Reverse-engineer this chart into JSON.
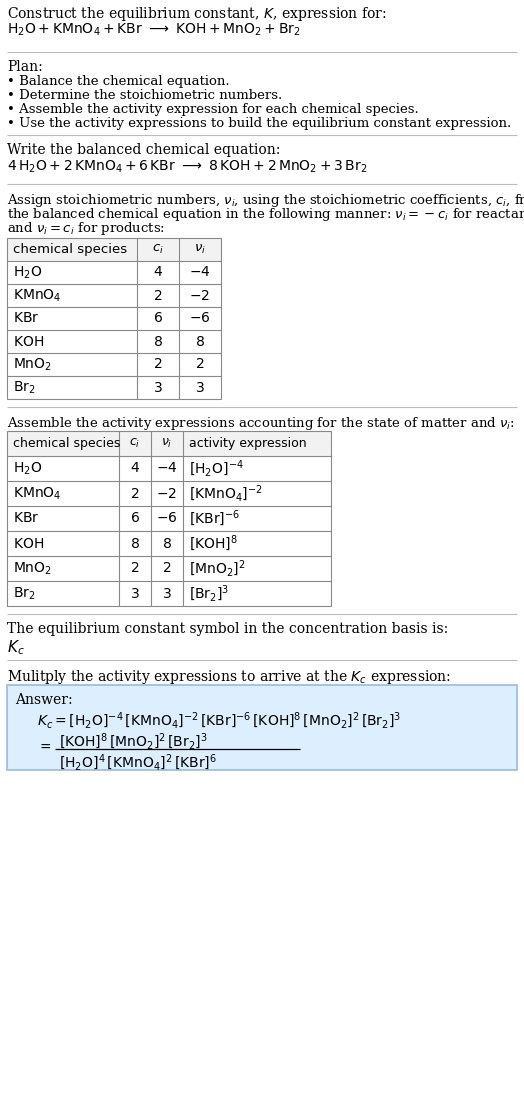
{
  "title_line1": "Construct the equilibrium constant, $K$, expression for:",
  "title_line2_plain": "H",
  "section_separator_color": "#aaaaaa",
  "plan_header": "Plan:",
  "plan_items": [
    "• Balance the chemical equation.",
    "• Determine the stoichiometric numbers.",
    "• Assemble the activity expression for each chemical species.",
    "• Use the activity expressions to build the equilibrium constant expression."
  ],
  "balanced_header": "Write the balanced chemical equation:",
  "stoich_intro": "Assign stoichiometric numbers, $\\nu_i$, using the stoichiometric coefficients, $c_i$, from the balanced chemical equation in the following manner: $\\nu_i = -c_i$ for reactants and $\\nu_i = c_i$ for products:",
  "table1_cols": [
    "chemical species",
    "$c_i$",
    "$\\nu_i$"
  ],
  "table1_rows": [
    [
      "$\\mathrm{H_2O}$",
      "4",
      "$-4$"
    ],
    [
      "$\\mathrm{KMnO_4}$",
      "2",
      "$-2$"
    ],
    [
      "$\\mathrm{KBr}$",
      "6",
      "$-6$"
    ],
    [
      "$\\mathrm{KOH}$",
      "8",
      "8"
    ],
    [
      "$\\mathrm{MnO_2}$",
      "2",
      "2"
    ],
    [
      "$\\mathrm{Br_2}$",
      "3",
      "3"
    ]
  ],
  "activity_header": "Assemble the activity expressions accounting for the state of matter and $\\nu_i$:",
  "table2_cols": [
    "chemical species",
    "$c_i$",
    "$\\nu_i$",
    "activity expression"
  ],
  "table2_rows": [
    [
      "$\\mathrm{H_2O}$",
      "4",
      "$-4$",
      "$[\\mathrm{H_2O}]^{-4}$"
    ],
    [
      "$\\mathrm{KMnO_4}$",
      "2",
      "$-2$",
      "$[\\mathrm{KMnO_4}]^{-2}$"
    ],
    [
      "$\\mathrm{KBr}$",
      "6",
      "$-6$",
      "$[\\mathrm{KBr}]^{-6}$"
    ],
    [
      "$\\mathrm{KOH}$",
      "8",
      "8",
      "$[\\mathrm{KOH}]^{8}$"
    ],
    [
      "$\\mathrm{MnO_2}$",
      "2",
      "2",
      "$[\\mathrm{MnO_2}]^{2}$"
    ],
    [
      "$\\mathrm{Br_2}$",
      "3",
      "3",
      "$[\\mathrm{Br_2}]^{3}$"
    ]
  ],
  "kc_header": "The equilibrium constant symbol in the concentration basis is:",
  "kc_symbol": "$K_c$",
  "multiply_header": "Mulitply the activity expressions to arrive at the $K_c$ expression:",
  "answer_label": "Answer:",
  "answer_box_color": "#ddeeff",
  "answer_box_border": "#99bbdd",
  "bg_color": "#ffffff",
  "text_color": "#000000",
  "font_size": 10.0,
  "small_font_size": 9.5,
  "table_font_size": 10.0,
  "sep_color": "#bbbbbb"
}
